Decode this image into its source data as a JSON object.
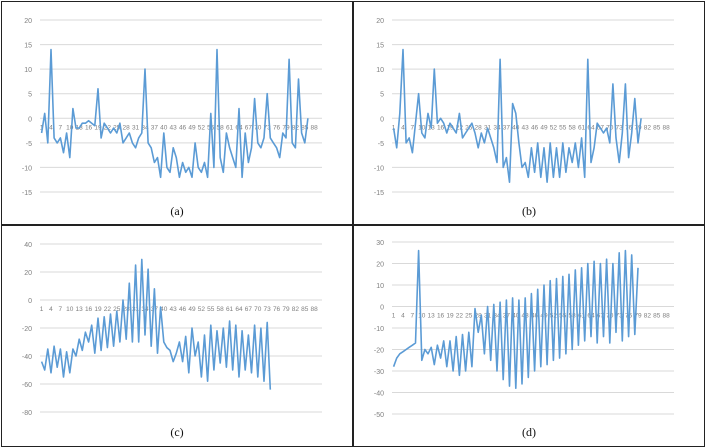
{
  "captions": [
    "(a)",
    "(b)",
    "(c)",
    "(d)"
  ],
  "colors": {
    "line": "#5b9bd5",
    "grid": "#d9d9d9",
    "tick_text": "#7f7f7f"
  },
  "chart_data": [
    {
      "type": "line",
      "ylim": [
        -15,
        20
      ],
      "yticks": [
        -15,
        -10,
        -5,
        0,
        5,
        10,
        15,
        20
      ],
      "xticks": [
        1,
        4,
        7,
        10,
        13,
        16,
        19,
        22,
        25,
        28,
        31,
        34,
        37,
        40,
        43,
        46,
        49,
        52,
        55,
        58,
        61,
        64,
        67,
        70,
        73,
        76,
        79,
        82,
        85,
        88
      ],
      "grid": true,
      "series": [
        {
          "values": [
            -3,
            1,
            -5,
            14,
            -4,
            -5,
            -4,
            -7,
            -3,
            -8,
            2,
            -2,
            -2,
            -1,
            -1,
            -0.5,
            -1,
            -1.5,
            6,
            -4,
            -1,
            -2,
            -3,
            -2,
            -3,
            -1,
            -5,
            -4,
            -3,
            -5,
            -6,
            -4,
            -3,
            10,
            -5,
            -6,
            -9,
            -8,
            -12,
            -3,
            -10,
            -11,
            -6,
            -8,
            -12,
            -9,
            -11,
            -10,
            -12,
            -5,
            -10,
            -11,
            -9,
            -12,
            1,
            -10,
            14,
            -8,
            -11,
            -3,
            -6,
            -8,
            -10,
            2,
            -12,
            -3,
            -9,
            -6,
            4,
            -5,
            -6,
            -4,
            5,
            -4,
            -5,
            -6,
            -8,
            -3,
            -4,
            12,
            -5,
            -6,
            8,
            -3,
            -5,
            0
          ]
        }
      ]
    },
    {
      "type": "line",
      "ylim": [
        -15,
        20
      ],
      "yticks": [
        -15,
        -10,
        -5,
        0,
        5,
        10,
        15,
        20
      ],
      "xticks": [
        1,
        4,
        7,
        10,
        13,
        16,
        19,
        22,
        25,
        28,
        31,
        34,
        37,
        40,
        43,
        46,
        49,
        52,
        55,
        58,
        61,
        64,
        67,
        70,
        73,
        76,
        79,
        82,
        85,
        88
      ],
      "grid": true,
      "series": [
        {
          "values": [
            -2,
            -6,
            1,
            14,
            -5,
            -4,
            -7,
            -1,
            5,
            -3,
            -4,
            1,
            -2,
            10,
            -1,
            0,
            -1,
            -3,
            -1,
            -2,
            -3,
            1,
            -4,
            -3,
            -2,
            -1,
            -3,
            -6,
            -3,
            -5,
            -2,
            -4,
            -6,
            -9,
            12,
            -10,
            -8,
            -13,
            3,
            1,
            -5,
            -10,
            -9,
            -12,
            -6,
            -11,
            -5,
            -12,
            -6,
            -13,
            -5,
            -12,
            -6,
            -12,
            -5,
            -11,
            -6,
            -9,
            -5,
            -10,
            -4,
            -12,
            12,
            -9,
            -6,
            -1,
            -2,
            -3,
            -2,
            -5,
            7,
            -4,
            -9,
            -3,
            7,
            -8,
            -3,
            4,
            -5,
            0
          ]
        }
      ]
    },
    {
      "type": "line",
      "ylim": [
        -80,
        40
      ],
      "yticks": [
        -80,
        -60,
        -40,
        -20,
        0,
        20,
        40
      ],
      "xticks": [
        1,
        4,
        7,
        10,
        13,
        16,
        19,
        22,
        25,
        28,
        31,
        34,
        37,
        40,
        43,
        46,
        49,
        52,
        55,
        58,
        61,
        64,
        67,
        70,
        73,
        76,
        79,
        82,
        85,
        88
      ],
      "grid": true,
      "series": [
        {
          "values": [
            -44,
            -50,
            -35,
            -52,
            -33,
            -48,
            -35,
            -55,
            -37,
            -52,
            -35,
            -40,
            -28,
            -36,
            -23,
            -30,
            -18,
            -38,
            -13,
            -36,
            -12,
            -34,
            -10,
            -33,
            -8,
            -30,
            0,
            -28,
            12,
            -30,
            25,
            -30,
            29,
            -25,
            22,
            -33,
            8,
            -38,
            -5,
            -30,
            -34,
            -36,
            -44,
            -38,
            -30,
            -44,
            -26,
            -52,
            -20,
            -40,
            -30,
            -55,
            -25,
            -58,
            -18,
            -50,
            -22,
            -45,
            -20,
            -48,
            -15,
            -50,
            -18,
            -55,
            -22,
            -50,
            -25,
            -52,
            -18,
            -55,
            -20,
            -58,
            -16,
            -64
          ]
        }
      ]
    },
    {
      "type": "line",
      "ylim": [
        -50,
        30
      ],
      "yticks": [
        -50,
        -40,
        -30,
        -20,
        -10,
        0,
        10,
        20,
        30
      ],
      "xticks": [
        1,
        4,
        7,
        10,
        13,
        16,
        19,
        22,
        25,
        28,
        31,
        34,
        37,
        40,
        43,
        46,
        49,
        52,
        55,
        58,
        61,
        64,
        67,
        70,
        73,
        76,
        79,
        82,
        85,
        88
      ],
      "grid": true,
      "series": [
        {
          "values": [
            -28,
            -24,
            -22,
            -21,
            -20,
            -19,
            -18,
            -17,
            26,
            -25,
            -20,
            -22,
            -19,
            -27,
            -18,
            -24,
            -16,
            -28,
            -16,
            -30,
            -14,
            -32,
            -13,
            -30,
            -12,
            -28,
            -1,
            -12,
            -4,
            -22,
            0,
            -25,
            1,
            -30,
            2,
            -34,
            3,
            -37,
            4,
            -38,
            3,
            -36,
            4,
            -33,
            6,
            -30,
            8,
            -28,
            10,
            -27,
            12,
            -25,
            13,
            -24,
            14,
            -22,
            15,
            -20,
            17,
            -18,
            18,
            -16,
            20,
            -14,
            21,
            -17,
            20,
            -14,
            22,
            -17,
            20,
            -12,
            25,
            -16,
            26,
            -14,
            24,
            -13,
            18
          ]
        }
      ]
    }
  ]
}
